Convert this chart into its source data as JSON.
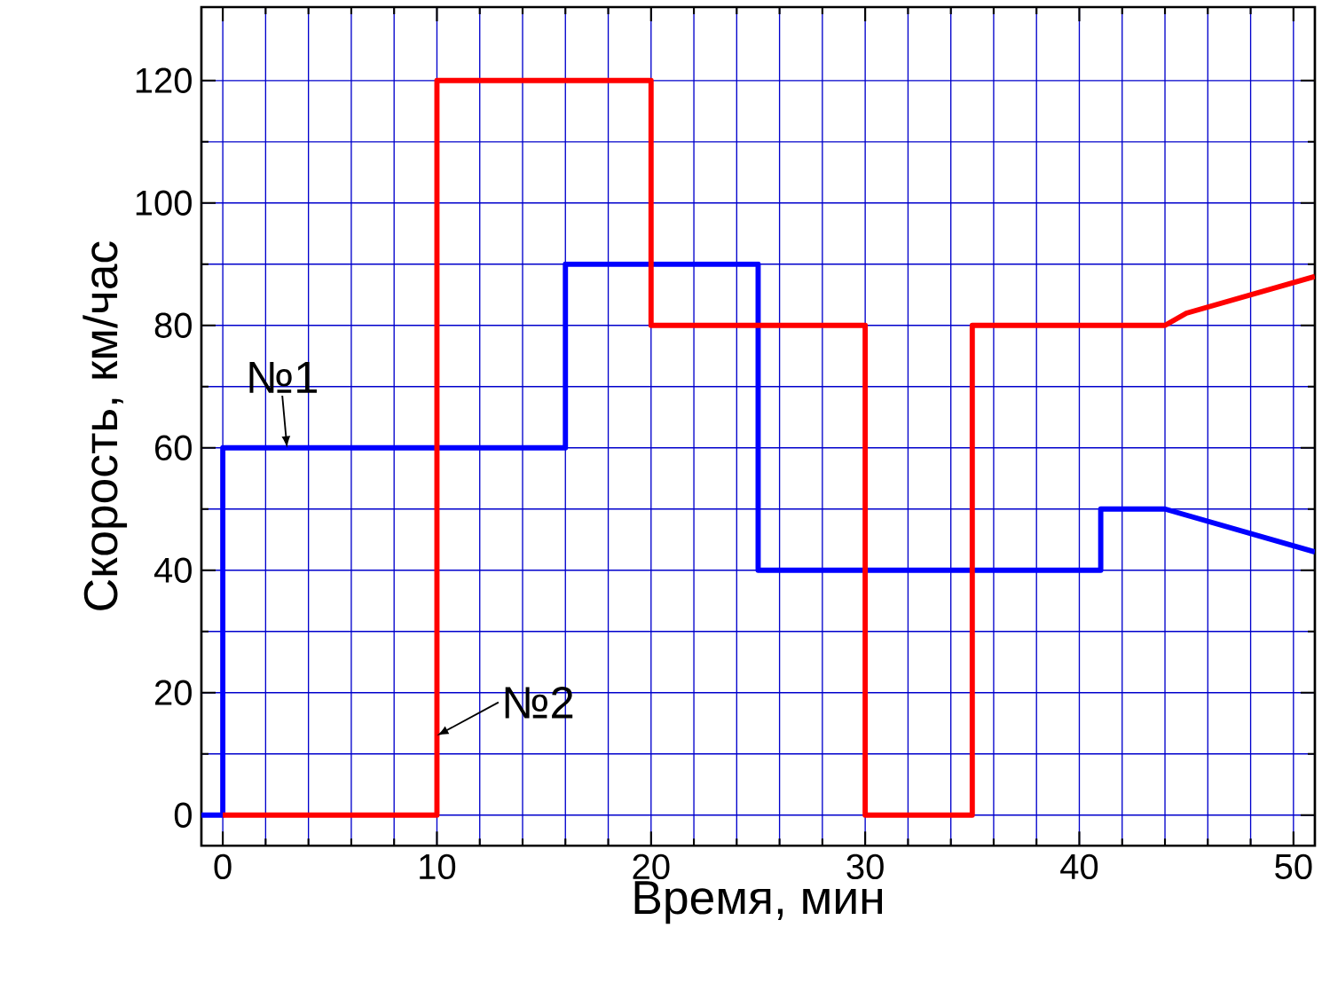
{
  "chart_data": {
    "type": "line",
    "xlabel": "Время, мин",
    "ylabel": "Скорость, км/час",
    "xlim": [
      -1,
      51
    ],
    "ylim": [
      -5,
      132
    ],
    "xticks": [
      0,
      10,
      20,
      30,
      40,
      50
    ],
    "yticks": [
      0,
      20,
      40,
      60,
      80,
      100,
      120
    ],
    "grid": true,
    "line_style": "solid",
    "marker": "none",
    "series": [
      {
        "color": "#0000ff",
        "x": [
          -1,
          0,
          0,
          16,
          16,
          25,
          25,
          41,
          41,
          44,
          51
        ],
        "values": [
          0,
          0,
          60,
          60,
          90,
          90,
          40,
          40,
          50,
          50,
          43
        ]
      },
      {
        "color": "#ff0000",
        "x": [
          0,
          10,
          10,
          20,
          20,
          30,
          30,
          35,
          35,
          44,
          45,
          51
        ],
        "values": [
          0,
          0,
          120,
          120,
          80,
          80,
          0,
          0,
          80,
          80,
          82,
          88
        ]
      }
    ],
    "annotations": [
      {
        "text": "№1",
        "x": 3,
        "y": 60
      },
      {
        "text": "№2",
        "x": 10,
        "y": 13
      }
    ]
  }
}
